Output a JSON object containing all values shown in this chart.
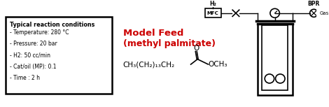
{
  "bg_color": "#ffffff",
  "box_text_title": "Typical reaction conditions",
  "box_text_lines": [
    "- Temperature: 280 °C",
    "- Pressure: 20 bar",
    "- H2: 50 cc/min",
    "- Cat/oil (MP): 0.1",
    "- Time : 2 h"
  ],
  "model_feed_title": "Model Feed",
  "model_feed_subtitle": "(methyl palmitate)",
  "model_feed_color": "#cc0000",
  "chemical_formula_main": "CH₃(CH₂)₁₃CH₂",
  "chemical_formula_end": "OCH₃",
  "h2_label": "H₂",
  "mfc_label": "MFC",
  "bpr_label": "BPR",
  "gas_label": "Gas"
}
